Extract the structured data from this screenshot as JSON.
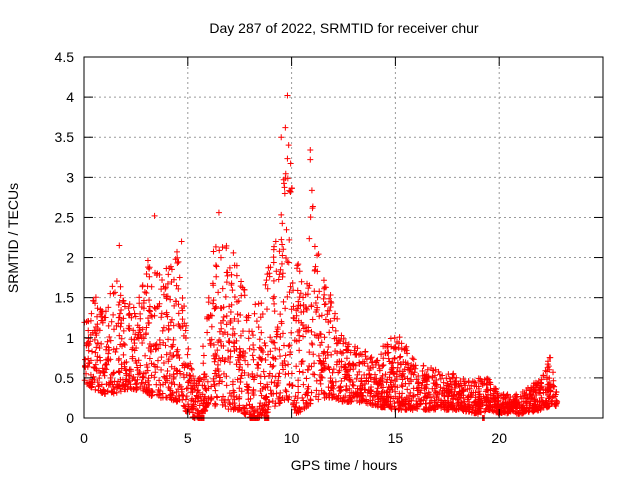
{
  "chart_data": {
    "type": "scatter",
    "title": "Day 287 of 2022, SRMTID for receiver chur",
    "xlabel": "GPS time / hours",
    "ylabel": "SRMTID / TECUs",
    "xlim": [
      0,
      25
    ],
    "ylim": [
      0,
      4.5
    ],
    "x_ticks": [
      0,
      5,
      10,
      15,
      20
    ],
    "x_tick_labels": [
      "0",
      "5",
      "10",
      "15",
      "20"
    ],
    "y_ticks": [
      0,
      0.5,
      1,
      1.5,
      2,
      2.5,
      3,
      3.5,
      4,
      4.5
    ],
    "y_tick_labels": [
      "0",
      "0.5",
      "1",
      "1.5",
      "2",
      "2.5",
      "3",
      "3.5",
      "4",
      "4.5"
    ],
    "grid": true,
    "marker": "+",
    "series_color": "#ff0000",
    "envelope": {
      "x": [
        0,
        0.5,
        1,
        1.5,
        2,
        2.5,
        3,
        3.5,
        4,
        4.5,
        5,
        5.3,
        5.6,
        6,
        6.5,
        7,
        7.5,
        8,
        8.5,
        9,
        9.5,
        9.8,
        10.2,
        10.6,
        11,
        11.5,
        12,
        12.5,
        13,
        14,
        15,
        16,
        17,
        18,
        19,
        19.5,
        20,
        21,
        22,
        22.5,
        22.8
      ],
      "low": [
        0.45,
        0.35,
        0.3,
        0.3,
        0.35,
        0.35,
        0.3,
        0.25,
        0.25,
        0.2,
        0.05,
        0.0,
        0.0,
        0.15,
        0.15,
        0.1,
        0.1,
        0.0,
        0.0,
        0.1,
        0.2,
        0.25,
        0.05,
        0.1,
        0.2,
        0.25,
        0.25,
        0.2,
        0.2,
        0.15,
        0.1,
        0.1,
        0.1,
        0.1,
        0.05,
        0.1,
        0.05,
        0.05,
        0.1,
        0.15,
        0.15
      ],
      "high": [
        1.2,
        1.6,
        1.3,
        1.8,
        1.5,
        1.5,
        2.0,
        1.8,
        1.9,
        2.1,
        1.0,
        0.5,
        0.5,
        2.0,
        2.2,
        2.3,
        1.8,
        1.4,
        1.6,
        2.0,
        2.6,
        3.8,
        2.2,
        1.5,
        3.0,
        1.8,
        1.5,
        1.0,
        0.9,
        0.8,
        1.1,
        0.7,
        0.6,
        0.55,
        0.5,
        0.5,
        0.3,
        0.3,
        0.5,
        0.8,
        0.35
      ]
    },
    "peaks": [
      {
        "x": 9.8,
        "y": 4.02
      },
      {
        "x": 9.7,
        "y": 3.62
      },
      {
        "x": 9.5,
        "y": 3.5
      },
      {
        "x": 10.9,
        "y": 3.34
      },
      {
        "x": 10.9,
        "y": 3.22
      },
      {
        "x": 9.7,
        "y": 2.99
      },
      {
        "x": 3.4,
        "y": 2.52
      },
      {
        "x": 6.5,
        "y": 2.56
      },
      {
        "x": 4.7,
        "y": 2.2
      },
      {
        "x": 1.7,
        "y": 2.15
      }
    ],
    "zero_runs": [
      {
        "x0": 5.5,
        "x1": 5.8
      },
      {
        "x0": 8.0,
        "x1": 8.4
      },
      {
        "x0": 8.7,
        "x1": 8.9
      },
      {
        "x0": 19.2,
        "x1": 19.3
      }
    ]
  }
}
